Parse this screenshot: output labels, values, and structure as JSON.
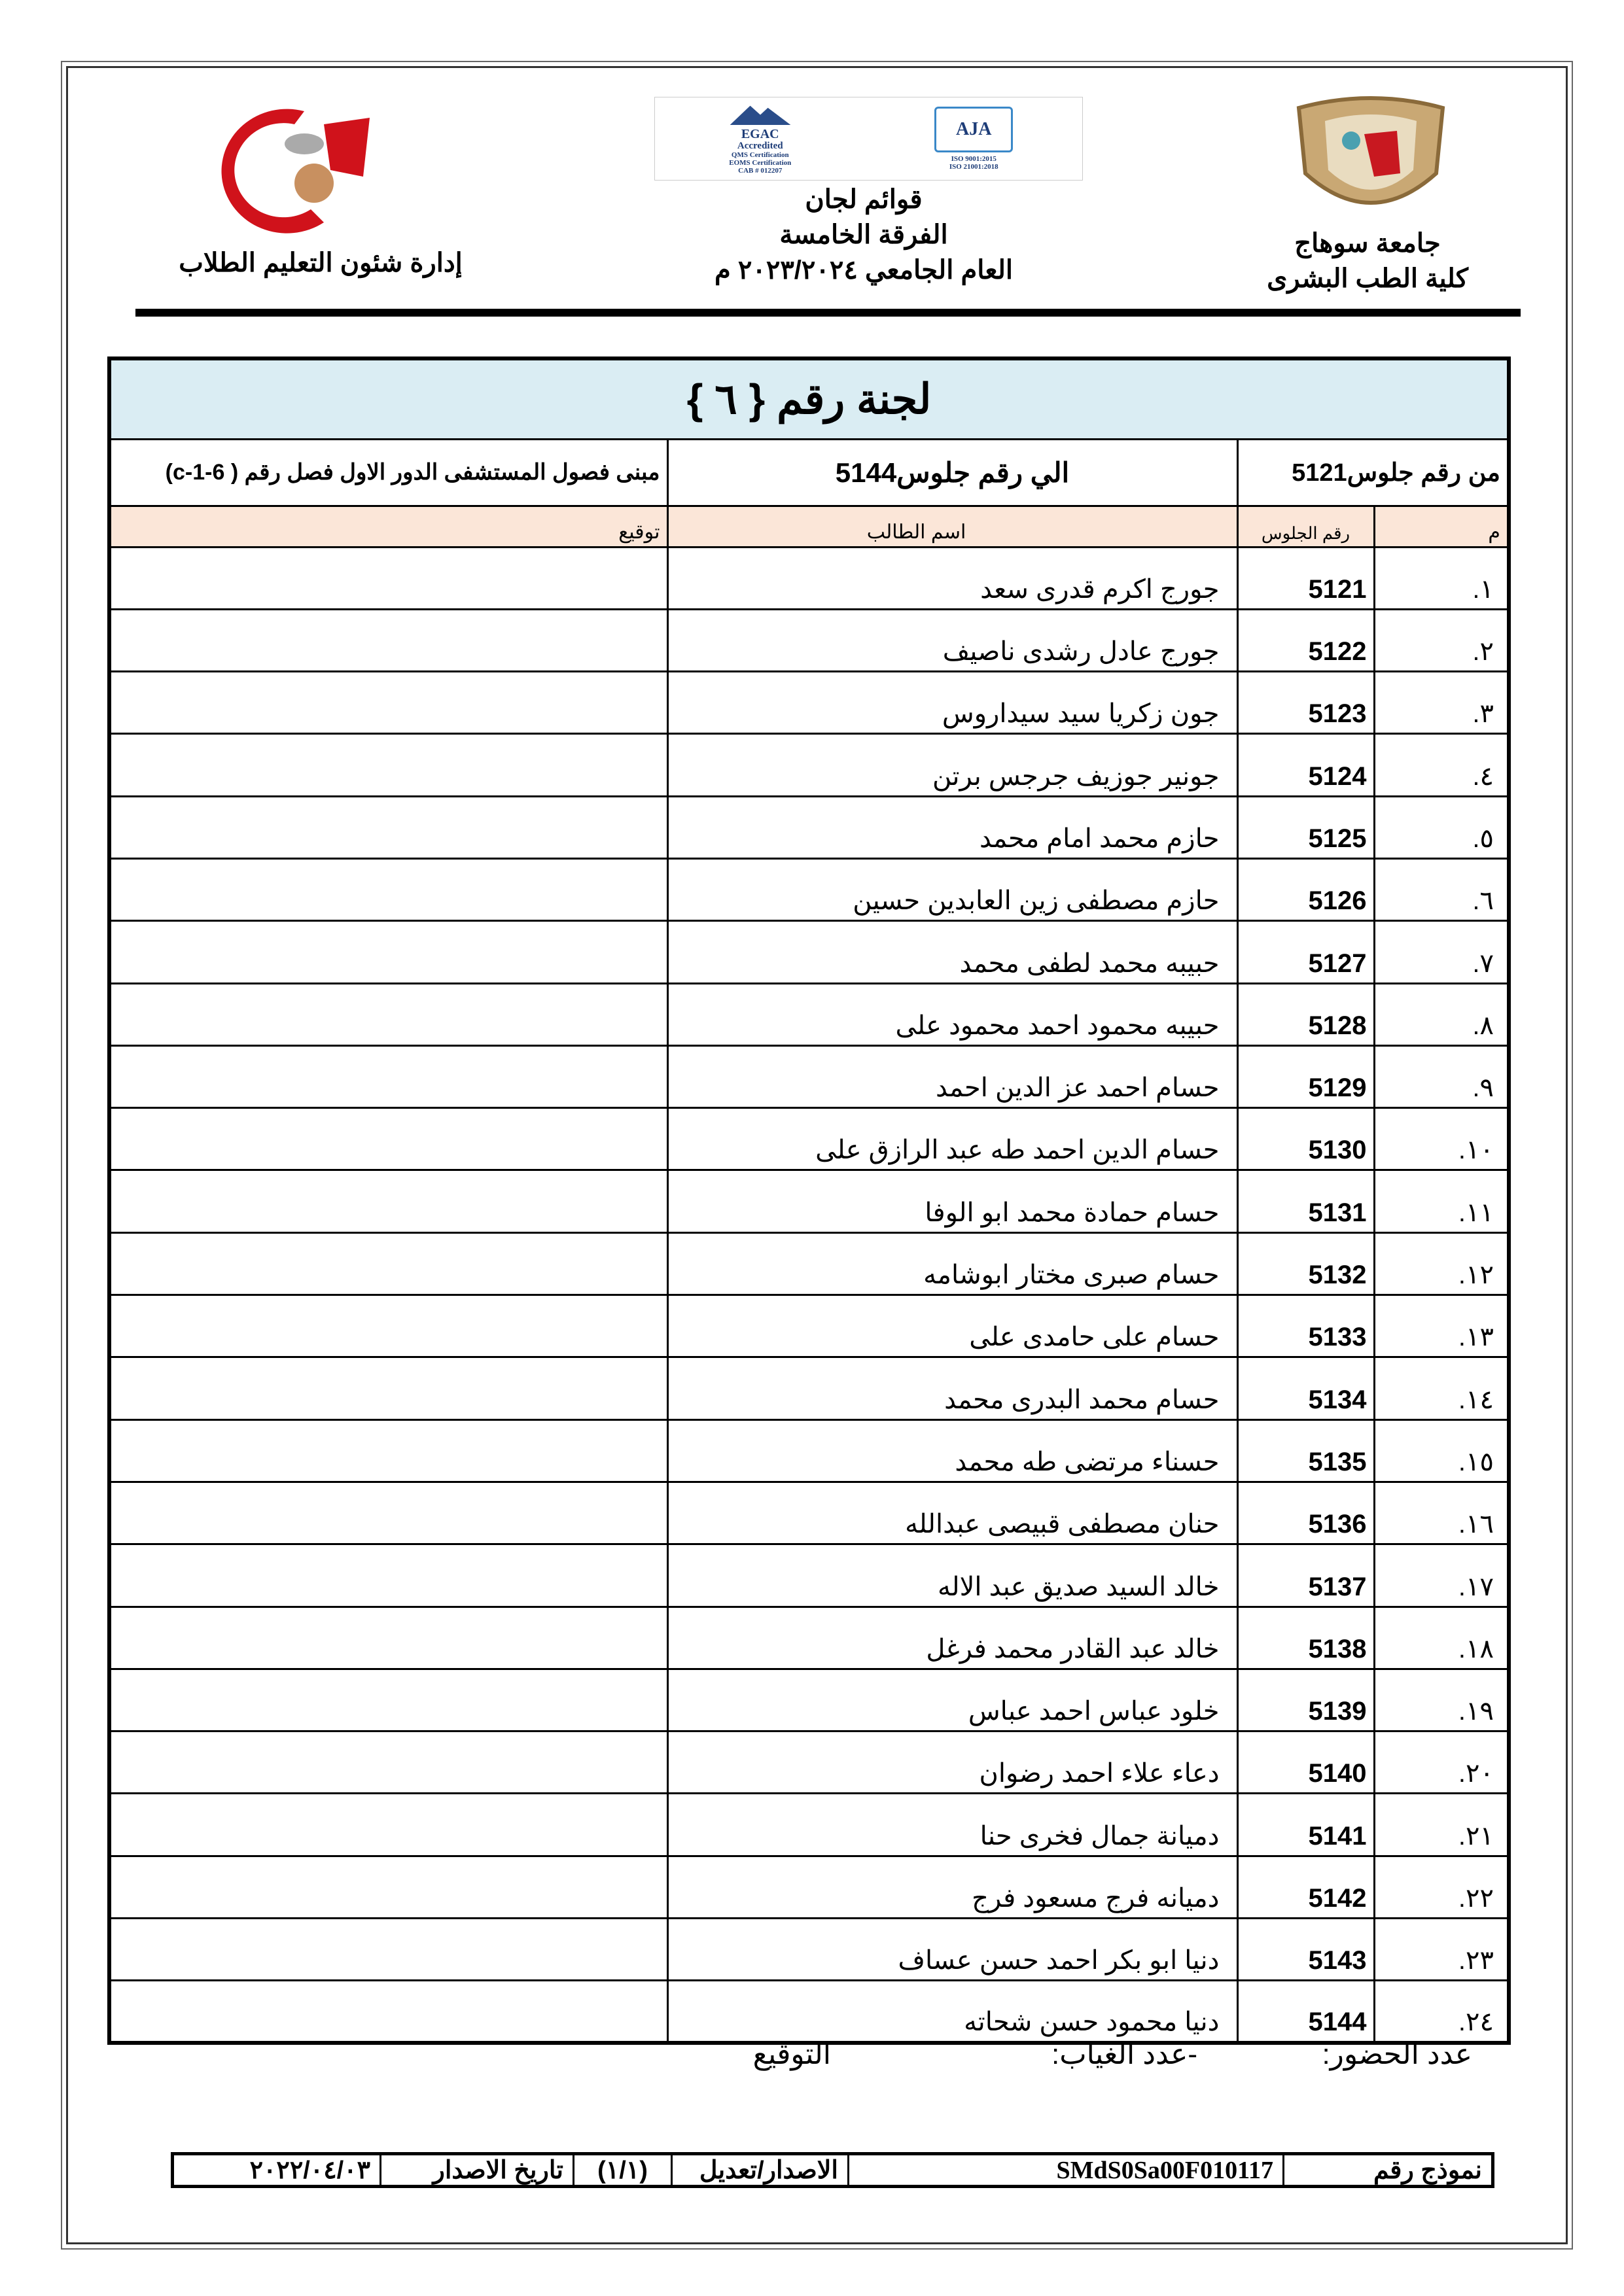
{
  "header": {
    "right_lines": [
      "جامعة سوهاج",
      "كلية الطب البشرى"
    ],
    "center_lines": [
      "قوائم لجان",
      "الفرقة الخامسة",
      "العام الجامعي ٢٠٢٣/٢٠٢٤ م"
    ],
    "left_line": "إدارة شئون التعليم الطلاب",
    "cert_logo_text": [
      "EGAC",
      "Accredited",
      "QMS Certification",
      "EOMS Certification",
      "CAB # 012207",
      "AJA",
      "ISO 9001:2015",
      "ISO 21001:2018"
    ],
    "faculty_logo_text": "جامعة سوهاج كلية الطب"
  },
  "committee": {
    "title": "لجنة رقم { ٦ }",
    "from_label": "من رقم جلوس5121",
    "to_label": "الي رقم جلوس5144",
    "location": "مبنى فصول المستشفى الدور الاول فصل رقم ( c-1-6)"
  },
  "columns": {
    "index": "م",
    "seat": "رقم الجلوس",
    "name": "اسم الطالب",
    "signature": "توقيع"
  },
  "rows": [
    {
      "n": "١.",
      "seat": "5121",
      "name": "جورج اكرم قدرى سعد"
    },
    {
      "n": "٢.",
      "seat": "5122",
      "name": "جورج عادل رشدى ناصيف"
    },
    {
      "n": "٣.",
      "seat": "5123",
      "name": "جون زكريا سيد سيداروس"
    },
    {
      "n": "٤.",
      "seat": "5124",
      "name": "جونير جوزيف جرجس برتن"
    },
    {
      "n": "٥.",
      "seat": "5125",
      "name": "حازم محمد امام محمد"
    },
    {
      "n": "٦.",
      "seat": "5126",
      "name": "حازم مصطفى زين العابدين حسين"
    },
    {
      "n": "٧.",
      "seat": "5127",
      "name": "حبيبه محمد لطفى محمد"
    },
    {
      "n": "٨.",
      "seat": "5128",
      "name": "حبيبه محمود احمد محمود على"
    },
    {
      "n": "٩.",
      "seat": "5129",
      "name": "حسام احمد عز الدين احمد"
    },
    {
      "n": "١٠.",
      "seat": "5130",
      "name": "حسام الدين احمد طه عبد الرازق على"
    },
    {
      "n": "١١.",
      "seat": "5131",
      "name": "حسام حمادة محمد ابو الوفا"
    },
    {
      "n": "١٢.",
      "seat": "5132",
      "name": "حسام صبرى مختار ابوشامه"
    },
    {
      "n": "١٣.",
      "seat": "5133",
      "name": "حسام على حامدى على"
    },
    {
      "n": "١٤.",
      "seat": "5134",
      "name": "حسام محمد البدرى محمد"
    },
    {
      "n": "١٥.",
      "seat": "5135",
      "name": "حسناء مرتضى طه محمد"
    },
    {
      "n": "١٦.",
      "seat": "5136",
      "name": "حنان مصطفى قبيصى عبدالله"
    },
    {
      "n": "١٧.",
      "seat": "5137",
      "name": "خالد السيد صديق عبد الاله"
    },
    {
      "n": "١٨.",
      "seat": "5138",
      "name": "خالد عبد القادر محمد فرغل"
    },
    {
      "n": "١٩.",
      "seat": "5139",
      "name": "خلود عباس احمد عباس"
    },
    {
      "n": "٢٠.",
      "seat": "5140",
      "name": "دعاء علاء احمد رضوان"
    },
    {
      "n": "٢١.",
      "seat": "5141",
      "name": "دميانة جمال فخرى حنا"
    },
    {
      "n": "٢٢.",
      "seat": "5142",
      "name": "دميانه فرج مسعود فرج"
    },
    {
      "n": "٢٣.",
      "seat": "5143",
      "name": "دنيا ابو بكر احمد حسن عساف"
    },
    {
      "n": "٢٤.",
      "seat": "5144",
      "name": "دنيا محمود حسن شحاته"
    }
  ],
  "footer": {
    "attendance": "عدد الحضور:",
    "absence": "-عدد الغياب:",
    "signature": "التوقيع",
    "form_label": "نموذج رقم",
    "form_code": "SMdS0Sa00F010117",
    "version_label": "الاصدار/تعديل",
    "version": "(١/١)",
    "issue_date_label": "تاريخ الاصدار",
    "issue_date": "٢٠٢٢/٠٤/٠٣"
  },
  "colors": {
    "title_bg": "#daedf3",
    "column_header_bg": "#fbe6d8",
    "logo_red": "#d0121b"
  }
}
